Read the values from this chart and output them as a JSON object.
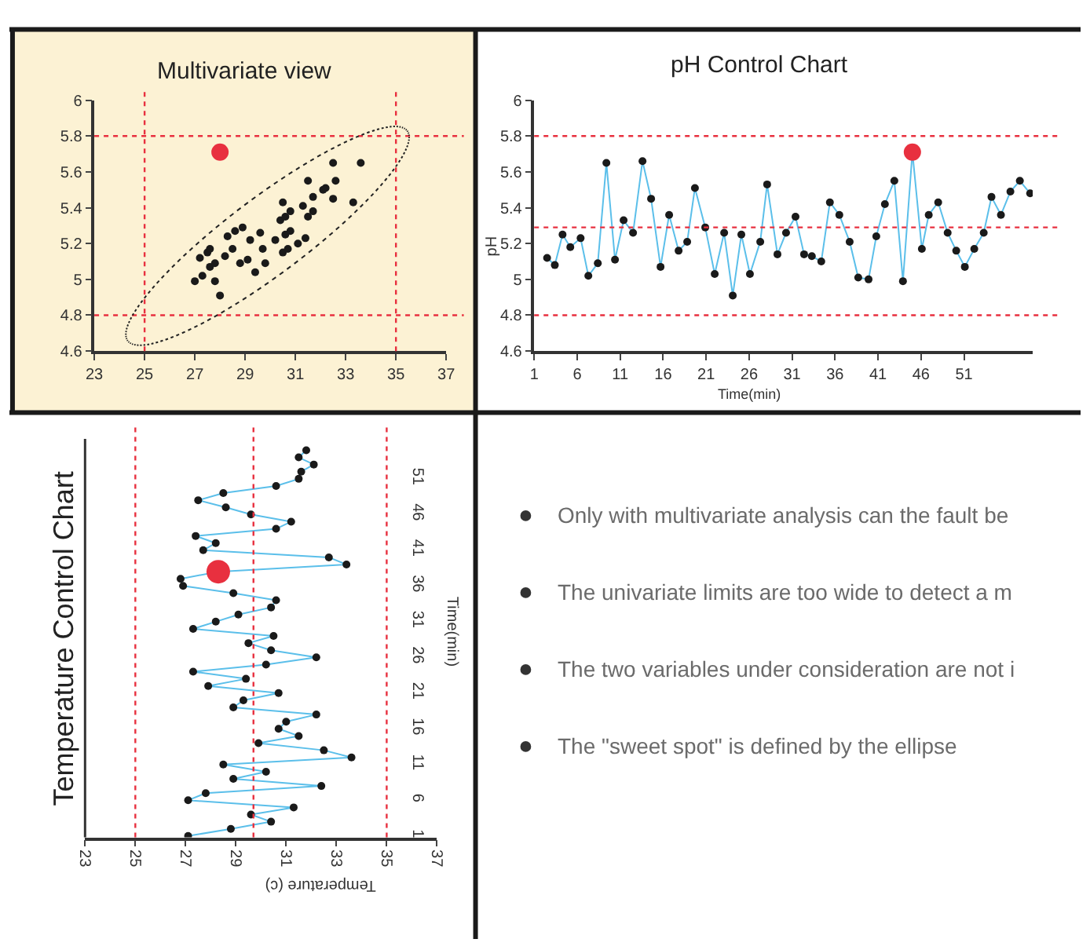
{
  "chart_data": [
    {
      "type": "scatter",
      "title": "Multivariate view",
      "marker": "circle",
      "xlim": [
        23,
        37
      ],
      "ylim": [
        4.6,
        6
      ],
      "xticks": [
        23,
        25,
        27,
        29,
        31,
        33,
        35,
        37
      ],
      "yticks": [
        4.6,
        4.8,
        5,
        5.2,
        5.4,
        5.6,
        5.8,
        6
      ],
      "series": [
        {
          "color": "#1a1a1a",
          "x": [
            27.0,
            27.3,
            27.2,
            27.5,
            27.6,
            27.6,
            27.8,
            27.8,
            28.0,
            28.2,
            28.3,
            28.5,
            28.6,
            28.8,
            28.9,
            29.1,
            29.2,
            29.4,
            29.6,
            29.7,
            29.8,
            30.2,
            30.4,
            30.5,
            30.5,
            30.6,
            30.6,
            30.7,
            30.8,
            30.8,
            31.1,
            31.3,
            31.4,
            31.5,
            31.5,
            31.7,
            31.7,
            32.1,
            32.2,
            32.5,
            32.6,
            32.5,
            33.3,
            33.6
          ],
          "values": [
            4.99,
            5.02,
            5.12,
            5.15,
            5.17,
            5.07,
            5.09,
            4.99,
            4.91,
            5.13,
            5.24,
            5.17,
            5.27,
            5.09,
            5.29,
            5.11,
            5.22,
            5.04,
            5.26,
            5.17,
            5.09,
            5.22,
            5.33,
            5.43,
            5.15,
            5.35,
            5.25,
            5.17,
            5.27,
            5.38,
            5.2,
            5.41,
            5.23,
            5.35,
            5.55,
            5.46,
            5.38,
            5.5,
            5.51,
            5.45,
            5.55,
            5.65,
            5.43,
            5.65
          ]
        },
        {
          "color": "#e8303f",
          "x": [
            28.0
          ],
          "values": [
            5.71
          ]
        }
      ],
      "ref_lines": [
        {
          "axis": "x",
          "value": 25,
          "color": "#e8303f",
          "line_style": "dotted"
        },
        {
          "axis": "x",
          "value": 35,
          "color": "#e8303f",
          "line_style": "dotted"
        },
        {
          "axis": "y",
          "value": 4.8,
          "color": "#e8303f",
          "line_style": "dotted"
        },
        {
          "axis": "y",
          "value": 5.8,
          "color": "#e8303f",
          "line_style": "dotted"
        }
      ]
    },
    {
      "type": "line",
      "title": "pH Control Chart",
      "xlabel": "Time(min)",
      "ylabel": "pH",
      "marker": "circle",
      "xlim": [
        1,
        59
      ],
      "ylim": [
        4.6,
        6
      ],
      "xticks": [
        1,
        6,
        11,
        16,
        21,
        26,
        31,
        36,
        41,
        46,
        51
      ],
      "yticks": [
        4.6,
        4.8,
        5,
        5.2,
        5.4,
        5.6,
        5.8,
        6
      ],
      "series": [
        {
          "type": "line",
          "color": "#5bbfea",
          "x": [
            2.5,
            3.4,
            4.3,
            5.2,
            6.4,
            7.3,
            8.4,
            9.4,
            10.4,
            11.4,
            12.5,
            13.6,
            14.6,
            15.7,
            16.7,
            17.8,
            18.8,
            19.7,
            20.9,
            22.0,
            23.1,
            24.1,
            25.1,
            26.1,
            27.3,
            28.1,
            29.3,
            30.3,
            31.4,
            32.4,
            33.3,
            34.4,
            35.4,
            36.5,
            37.7,
            38.7,
            39.9,
            40.8,
            41.8,
            42.9,
            43.9,
            45.0,
            46.1,
            46.9,
            48.0,
            49.1,
            50.1,
            51.1,
            52.2,
            53.3,
            54.2,
            55.3,
            56.4,
            57.5,
            58.7
          ],
          "values": [
            5.12,
            5.08,
            5.25,
            5.18,
            5.23,
            5.02,
            5.09,
            5.65,
            5.11,
            5.33,
            5.26,
            5.66,
            5.45,
            5.07,
            5.36,
            5.16,
            5.21,
            5.51,
            5.29,
            5.03,
            5.26,
            4.91,
            5.25,
            5.03,
            5.21,
            5.53,
            5.14,
            5.26,
            5.35,
            5.14,
            5.13,
            5.1,
            5.43,
            5.36,
            5.21,
            5.01,
            5.0,
            5.24,
            5.42,
            5.55,
            4.99,
            5.71,
            5.17,
            5.36,
            5.43,
            5.26,
            5.16,
            5.07,
            5.17,
            5.26,
            5.46,
            5.36,
            5.49,
            5.55,
            5.48
          ]
        },
        {
          "type": "scatter",
          "color": "#e8303f",
          "x": [
            45.0
          ],
          "values": [
            5.71
          ]
        }
      ],
      "ref_lines": [
        {
          "axis": "y",
          "value": 5.8,
          "color": "#e8303f",
          "line_style": "dotted"
        },
        {
          "axis": "y",
          "value": 5.29,
          "color": "#e8303f",
          "line_style": "dotted"
        },
        {
          "axis": "y",
          "value": 4.8,
          "color": "#e8303f",
          "line_style": "dotted"
        }
      ]
    },
    {
      "type": "line",
      "orientation": "horizontal",
      "title": "Temperature Control Chart",
      "xlabel": "Temperature (c)",
      "ylabel": "Time(min)",
      "marker": "circle",
      "xlim": [
        23,
        37
      ],
      "ylim": [
        0.8,
        56.6
      ],
      "xticks": [
        23,
        25,
        27,
        29,
        31,
        33,
        35,
        37
      ],
      "yticks": [
        1,
        6,
        11,
        16,
        21,
        26,
        31,
        36,
        41,
        46,
        51
      ],
      "series": [
        {
          "type": "line",
          "color": "#5bbfea",
          "x": [
            1,
            2,
            3,
            4,
            5,
            6,
            7,
            8,
            9,
            10,
            11,
            12,
            13,
            14,
            15,
            16,
            17,
            18,
            19,
            20,
            21,
            22,
            23,
            24,
            25,
            26,
            27,
            28,
            29,
            30,
            31,
            32,
            33,
            34,
            35,
            36,
            37,
            38,
            39,
            40,
            41,
            42,
            43,
            44,
            45,
            46,
            47,
            48,
            49,
            50,
            51,
            52,
            53,
            54,
            55
          ],
          "values": [
            27.1,
            28.8,
            30.4,
            29.6,
            31.3,
            27.1,
            27.8,
            32.4,
            28.9,
            30.2,
            28.5,
            33.6,
            32.5,
            29.9,
            31.5,
            30.7,
            31.0,
            32.2,
            28.9,
            29.3,
            30.7,
            27.9,
            29.4,
            27.3,
            30.2,
            32.2,
            30.4,
            29.5,
            30.5,
            27.3,
            28.2,
            29.1,
            30.4,
            30.6,
            28.9,
            26.9,
            26.8,
            28.3,
            33.4,
            32.7,
            27.7,
            28.2,
            27.4,
            30.6,
            31.2,
            29.6,
            28.6,
            27.5,
            28.5,
            30.6,
            31.5,
            31.6,
            32.1,
            31.5,
            31.8
          ]
        },
        {
          "type": "scatter",
          "color": "#e8303f",
          "x": [
            38
          ],
          "values": [
            28.3
          ]
        }
      ],
      "ref_lines": [
        {
          "axis": "x",
          "value": 25,
          "color": "#e8303f",
          "line_style": "dotted"
        },
        {
          "axis": "x",
          "value": 29.7,
          "color": "#e8303f",
          "line_style": "dotted"
        },
        {
          "axis": "x",
          "value": 35,
          "color": "#e8303f",
          "line_style": "dotted"
        }
      ]
    },
    {
      "type": "other",
      "annotations": [
        "Only with multivariate analysis can the fault be",
        "The univariate limits are too wide to detect a m",
        "The two variables under consideration are not i",
        "The \"sweet spot\" is defined by the ellipse"
      ]
    }
  ]
}
